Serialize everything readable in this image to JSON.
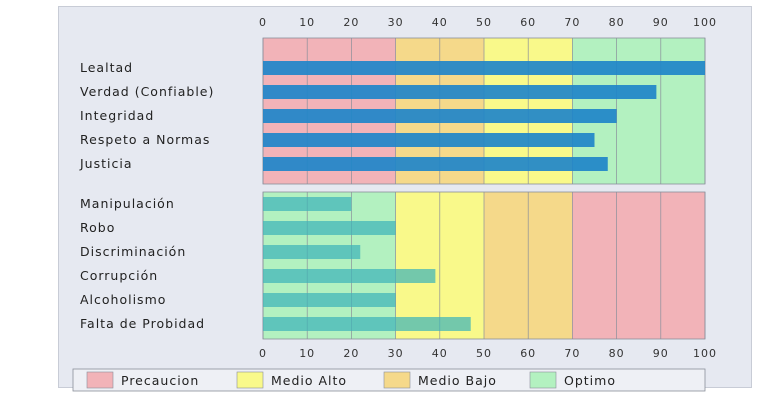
{
  "chart_data": [
    {
      "type": "bar",
      "orientation": "horizontal",
      "categories": [
        "Lealtad",
        "Verdad (Confiable)",
        "Integridad",
        "Respeto a Normas",
        "Justicia"
      ],
      "values": [
        100,
        89,
        80,
        75,
        78
      ],
      "xlim": [
        0,
        100
      ],
      "xticks": [
        0,
        10,
        20,
        30,
        40,
        50,
        60,
        70,
        80,
        90,
        100
      ],
      "bar_color": "#1f86c9",
      "zones": [
        {
          "from": 0,
          "to": 30,
          "legend": "Precaucion"
        },
        {
          "from": 30,
          "to": 50,
          "legend": "Medio Bajo"
        },
        {
          "from": 50,
          "to": 70,
          "legend": "Medio Alto"
        },
        {
          "from": 70,
          "to": 100,
          "legend": "Optimo"
        }
      ]
    },
    {
      "type": "bar",
      "orientation": "horizontal",
      "categories": [
        "Manipulación",
        "Robo",
        "Discriminación",
        "Corrupción",
        "Alcoholismo",
        "Falta de Probidad"
      ],
      "values": [
        20,
        30,
        22,
        39,
        30,
        47
      ],
      "xlim": [
        0,
        100
      ],
      "xticks": [
        0,
        10,
        20,
        30,
        40,
        50,
        60,
        70,
        80,
        90,
        100
      ],
      "bar_color": "#3fb4b8",
      "zones": [
        {
          "from": 0,
          "to": 30,
          "legend": "Optimo"
        },
        {
          "from": 30,
          "to": 50,
          "legend": "Medio Alto"
        },
        {
          "from": 50,
          "to": 70,
          "legend": "Medio Bajo"
        },
        {
          "from": 70,
          "to": 100,
          "legend": "Precaucion"
        }
      ]
    }
  ],
  "legend": [
    {
      "label": "Precaucion",
      "color": "#f2b3b8"
    },
    {
      "label": "Medio Alto",
      "color": "#f9f98a"
    },
    {
      "label": "Medio Bajo",
      "color": "#f5d98a"
    },
    {
      "label": "Optimo",
      "color": "#b3f1c0"
    }
  ]
}
